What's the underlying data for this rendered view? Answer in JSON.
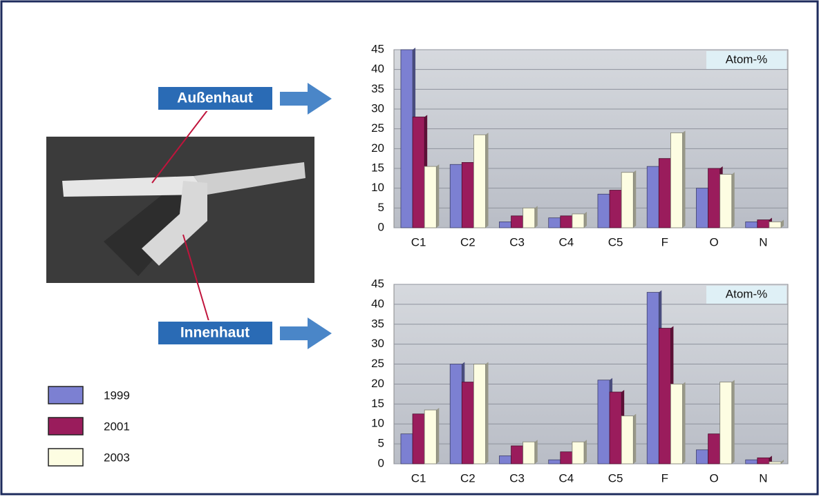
{
  "chart_data": [
    {
      "type": "bar",
      "label": "Außenhaut",
      "y_label": "Atom-%",
      "categories": [
        "C1",
        "C2",
        "C3",
        "C4",
        "C5",
        "F",
        "O",
        "N"
      ],
      "series": [
        {
          "name": "1999",
          "color": "#7c80d2",
          "values": [
            45,
            16,
            1.5,
            2.5,
            8.5,
            15.5,
            10,
            1.5
          ]
        },
        {
          "name": "2001",
          "color": "#9a1c5c",
          "values": [
            28,
            16.5,
            3,
            3,
            9.5,
            17.5,
            15,
            2
          ]
        },
        {
          "name": "2003",
          "color": "#fdfde2",
          "values": [
            15.5,
            23.5,
            5,
            3.5,
            14,
            24,
            13.5,
            1.5
          ]
        }
      ],
      "ylim": [
        0,
        45
      ],
      "yticks": [
        0,
        5,
        10,
        15,
        20,
        25,
        30,
        35,
        40,
        45
      ],
      "grid": true
    },
    {
      "type": "bar",
      "label": "Innenhaut",
      "y_label": "Atom-%",
      "categories": [
        "C1",
        "C2",
        "C3",
        "C4",
        "C5",
        "F",
        "O",
        "N"
      ],
      "series": [
        {
          "name": "1999",
          "color": "#7c80d2",
          "values": [
            7.5,
            25,
            2,
            1,
            21,
            43,
            3.5,
            1
          ]
        },
        {
          "name": "2001",
          "color": "#9a1c5c",
          "values": [
            12.5,
            20.5,
            4.5,
            3,
            18,
            34,
            7.5,
            1.5
          ]
        },
        {
          "name": "2003",
          "color": "#fdfde2",
          "values": [
            13.5,
            25,
            5.5,
            5.5,
            12,
            20,
            20.5,
            0.5
          ]
        }
      ],
      "ylim": [
        0,
        45
      ],
      "yticks": [
        0,
        5,
        10,
        15,
        20,
        25,
        30,
        35,
        40,
        45
      ],
      "grid": true
    }
  ]
}
